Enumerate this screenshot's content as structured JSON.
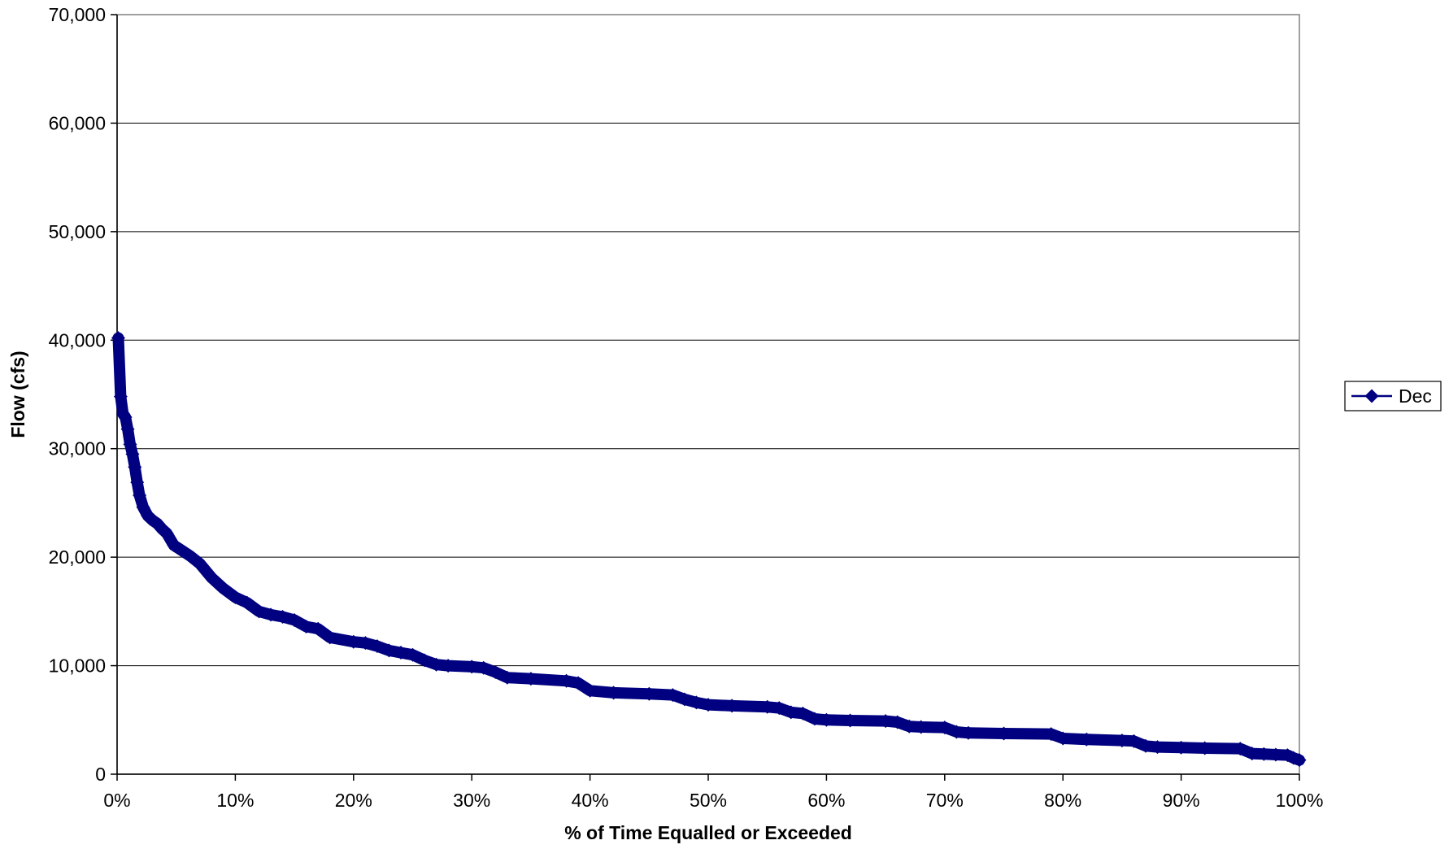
{
  "chart_data": {
    "type": "line",
    "title": "",
    "xlabel": "% of Time Equalled or Exceeded",
    "ylabel": "Flow (cfs)",
    "xlim": [
      0,
      100
    ],
    "ylim": [
      0,
      70000
    ],
    "x_ticks": [
      0,
      10,
      20,
      30,
      40,
      50,
      60,
      70,
      80,
      90,
      100
    ],
    "x_tick_labels": [
      "0%",
      "10%",
      "20%",
      "30%",
      "40%",
      "50%",
      "60%",
      "70%",
      "80%",
      "90%",
      "100%"
    ],
    "y_ticks": [
      0,
      10000,
      20000,
      30000,
      40000,
      50000,
      60000,
      70000
    ],
    "y_tick_labels": [
      "0",
      "10,000",
      "20,000",
      "30,000",
      "40,000",
      "50,000",
      "60,000",
      "70,000"
    ],
    "grid": "horizontal",
    "legend_position": "right",
    "series_color": "#000080",
    "marker": "diamond",
    "series": [
      {
        "name": "Dec",
        "x": [
          0.1,
          0.3,
          0.5,
          0.7,
          0.9,
          1.1,
          1.3,
          1.5,
          1.7,
          1.9,
          2.2,
          2.6,
          3.0,
          3.4,
          3.8,
          4.2,
          4.8,
          5.5,
          6.2,
          7.0,
          8.0,
          9.0,
          10.0,
          11.0,
          12.0,
          13.0,
          14.0,
          15.0,
          16.0,
          17.0,
          18.0,
          20.0,
          21.0,
          22.0,
          23.0,
          24.0,
          25.0,
          26.0,
          27.0,
          28.0,
          30.0,
          31.0,
          32.0,
          33.0,
          35.0,
          38.0,
          39.0,
          40.0,
          42.0,
          45.0,
          47.0,
          48.0,
          49.0,
          50.0,
          52.0,
          55.0,
          56.0,
          57.0,
          58.0,
          59.0,
          60.0,
          62.0,
          65.0,
          66.0,
          67.0,
          68.0,
          70.0,
          71.0,
          72.0,
          75.0,
          79.0,
          80.0,
          82.0,
          85.0,
          86.0,
          87.0,
          88.0,
          90.0,
          92.0,
          95.0,
          96.0,
          97.0,
          98.0,
          99.0,
          99.5,
          100.0
        ],
        "y": [
          40200,
          34800,
          33200,
          32900,
          31800,
          30400,
          29500,
          28300,
          26900,
          25700,
          24600,
          23800,
          23400,
          23100,
          22600,
          22200,
          21100,
          20600,
          20100,
          19400,
          18100,
          17100,
          16300,
          15800,
          15000,
          14700,
          14500,
          14200,
          13600,
          13400,
          12600,
          12200,
          12100,
          11800,
          11400,
          11200,
          11000,
          10500,
          10100,
          10000,
          9900,
          9800,
          9400,
          8900,
          8800,
          8600,
          8400,
          7700,
          7500,
          7400,
          7300,
          6900,
          6600,
          6400,
          6300,
          6200,
          6100,
          5700,
          5600,
          5100,
          5000,
          4950,
          4900,
          4800,
          4400,
          4350,
          4300,
          3900,
          3800,
          3750,
          3700,
          3300,
          3200,
          3100,
          3050,
          2600,
          2500,
          2450,
          2400,
          2350,
          1900,
          1850,
          1800,
          1750,
          1500,
          1300
        ]
      }
    ]
  }
}
